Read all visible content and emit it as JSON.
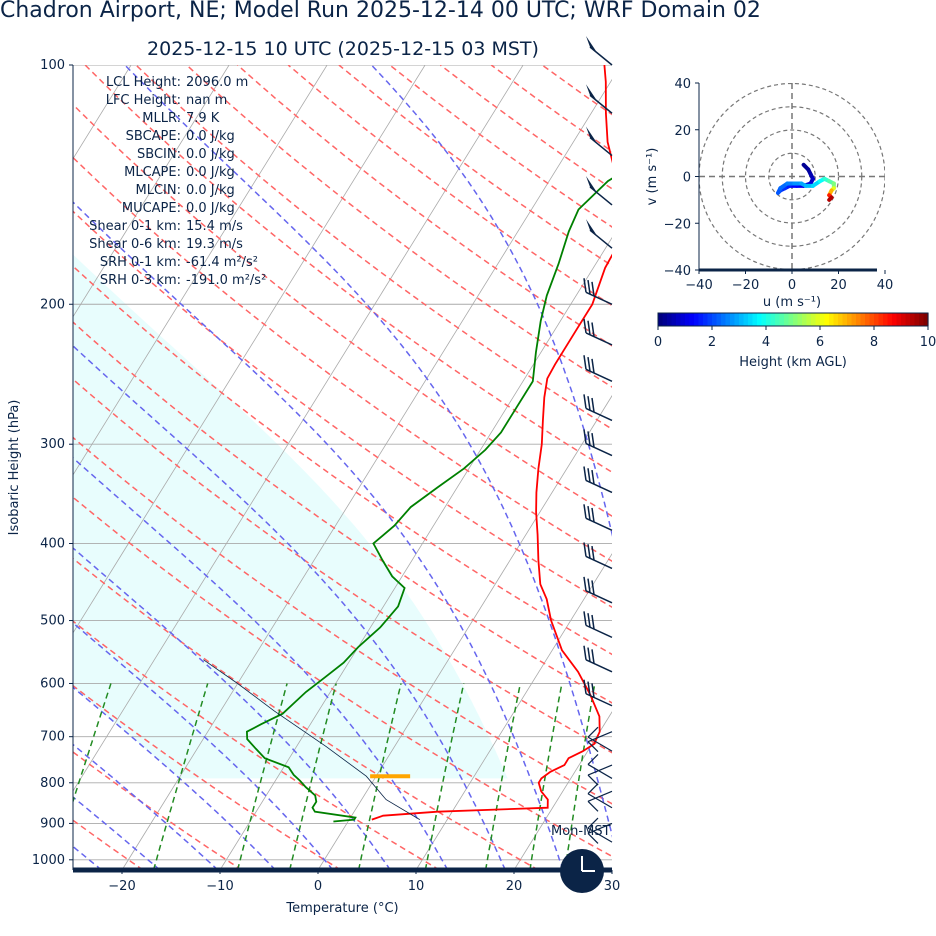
{
  "header": {
    "title": "Chadron Airport, NE; Model Run 2025-12-14 00 UTC; WRF Domain 02",
    "subtitle": "2025-12-15 10 UTC  (2025-12-15 03 MST)"
  },
  "stats": [
    {
      "label": "LCL Height:",
      "value": "2096.0 m"
    },
    {
      "label": "LFC Height:",
      "value": "nan m"
    },
    {
      "label": "MLLR:",
      "value": "7.9 K"
    },
    {
      "label": "SBCAPE:",
      "value": "0.0 J/kg"
    },
    {
      "label": "SBCIN:",
      "value": "0.0 J/kg"
    },
    {
      "label": "MLCAPE:",
      "value": "0.0 J/kg"
    },
    {
      "label": "MLCIN:",
      "value": "0.0 J/kg"
    },
    {
      "label": "MUCAPE:",
      "value": "0.0 J/kg"
    },
    {
      "label": "Shear 0-1 km:",
      "value": "15.4 m/s"
    },
    {
      "label": "Shear 0-6 km:",
      "value": "19.3 m/s"
    },
    {
      "label": "SRH 0-1 km:",
      "value": "-61.4 m²/s²"
    },
    {
      "label": "SRH 0-3 km:",
      "value": "-191.0 m²/s²"
    }
  ],
  "clock_label": "Mon-MST",
  "chart_data": [
    {
      "type": "line",
      "subtype": "skew-T log-P",
      "xlabel": "Temperature (°C)",
      "ylabel": "Isobaric Height (hPa)",
      "xlim": [
        -25,
        30
      ],
      "ylim": [
        1030,
        100
      ],
      "y_scale": "log",
      "xticks": [
        -20,
        -10,
        0,
        10,
        20,
        30
      ],
      "yticks": [
        100,
        200,
        300,
        400,
        500,
        600,
        700,
        800,
        900,
        1000
      ],
      "grid": true,
      "colors": {
        "temperature": "#ff0000",
        "dewpoint": "#008000",
        "dry_adiabats": "#ff6666",
        "moist_adiabats": "#6666ee",
        "mixing_ratio": "#228b22",
        "parcel": "#0b2447",
        "cloud_shade": "#e8fdfd",
        "lcl_marker": "#ffa500"
      },
      "series": [
        {
          "name": "Temperature",
          "points": [
            [
              2.3,
              890
            ],
            [
              3.2,
              880
            ],
            [
              8.5,
              870
            ],
            [
              19.5,
              860
            ],
            [
              19.0,
              840
            ],
            [
              17.8,
              820
            ],
            [
              17.0,
              800
            ],
            [
              17.0,
              790
            ],
            [
              17.5,
              775
            ],
            [
              18.5,
              760
            ],
            [
              18.5,
              745
            ],
            [
              19.5,
              730
            ],
            [
              20.2,
              715
            ],
            [
              20.0,
              690
            ],
            [
              19.0,
              660
            ],
            [
              16.7,
              620
            ],
            [
              14.0,
              580
            ],
            [
              11.0,
              545
            ],
            [
              8.0,
              500
            ],
            [
              6.2,
              470
            ],
            [
              4.6,
              450
            ],
            [
              2.9,
              420
            ],
            [
              1.2,
              390
            ],
            [
              -0.4,
              365
            ],
            [
              -1.6,
              345
            ],
            [
              -2.9,
              322
            ],
            [
              -4.1,
              300
            ],
            [
              -5.5,
              280
            ],
            [
              -6.8,
              262
            ],
            [
              -7.7,
              248
            ],
            [
              -7.8,
              238
            ],
            [
              -7.8,
              215
            ],
            [
              -7.8,
              200
            ],
            [
              -8.8,
              180
            ],
            [
              -9.0,
              165
            ],
            [
              -11.2,
              150
            ],
            [
              -13.7,
              137
            ],
            [
              -16.5,
              125
            ],
            [
              -18.5,
              115
            ],
            [
              -20.5,
              105
            ],
            [
              -21.7,
              100
            ]
          ]
        },
        {
          "name": "Dewpoint",
          "points": [
            [
              -1.5,
              895
            ],
            [
              0.5,
              890
            ],
            [
              0.5,
              885
            ],
            [
              -4.0,
              870
            ],
            [
              -4.5,
              860
            ],
            [
              -4.5,
              845
            ],
            [
              -5.0,
              830
            ],
            [
              -6.5,
              810
            ],
            [
              -7.5,
              795
            ],
            [
              -8.5,
              782
            ],
            [
              -9.5,
              765
            ],
            [
              -12.5,
              745
            ],
            [
              -14.0,
              725
            ],
            [
              -15.5,
              705
            ],
            [
              -16.0,
              690
            ],
            [
              -15.0,
              675
            ],
            [
              -13.5,
              655
            ],
            [
              -13.0,
              635
            ],
            [
              -12.5,
              615
            ],
            [
              -11.5,
              590
            ],
            [
              -10.5,
              565
            ],
            [
              -10.0,
              540
            ],
            [
              -9.0,
              510
            ],
            [
              -8.5,
              480
            ],
            [
              -9.0,
              455
            ],
            [
              -11.0,
              440
            ],
            [
              -13.0,
              420
            ],
            [
              -15.0,
              400
            ],
            [
              -14.0,
              380
            ],
            [
              -13.5,
              360
            ],
            [
              -12.0,
              340
            ],
            [
              -10.5,
              322
            ],
            [
              -9.5,
              305
            ],
            [
              -9.0,
              290
            ],
            [
              -9.0,
              270
            ],
            [
              -9.0,
              250
            ],
            [
              -10.5,
              230
            ],
            [
              -12.0,
              210
            ],
            [
              -13.0,
              195
            ],
            [
              -13.8,
              178
            ],
            [
              -14.8,
              162
            ],
            [
              -15.2,
              152
            ],
            [
              -14.0,
              140
            ],
            [
              -11.5,
              130
            ],
            [
              -9.5,
              120
            ],
            [
              -8.0,
              112
            ],
            [
              -6.0,
              105
            ],
            [
              -4.5,
              100
            ]
          ]
        },
        {
          "name": "Parcel",
          "points": [
            [
              7.2,
              890
            ],
            [
              2.5,
              840
            ],
            [
              -1.0,
              785
            ],
            [
              -7.0,
              720
            ],
            [
              -14.5,
              650
            ],
            [
              -20.0,
              600
            ],
            [
              -25.0,
              560
            ]
          ]
        }
      ],
      "lcl_pressure": 785,
      "wind_barb_levels": [
        100,
        115,
        130,
        150,
        170,
        200,
        225,
        250,
        280,
        310,
        345,
        385,
        430,
        475,
        525,
        580,
        640,
        690,
        730,
        760,
        790,
        820,
        860,
        900,
        950
      ]
    },
    {
      "type": "line",
      "subtype": "hodograph",
      "xlabel": "u (m s⁻¹)",
      "ylabel": "v (m s⁻¹)",
      "xlim": [
        -40,
        40
      ],
      "ylim": [
        -40,
        40
      ],
      "xticks": [
        -40,
        -20,
        0,
        20,
        40
      ],
      "yticks": [
        -40,
        -20,
        0,
        20,
        40
      ],
      "rings": [
        10,
        20,
        30,
        40
      ],
      "points": [
        [
          5,
          5
        ],
        [
          7,
          3
        ],
        [
          8,
          1
        ],
        [
          9,
          -1
        ],
        [
          8,
          -3
        ],
        [
          5,
          -4
        ],
        [
          2,
          -4
        ],
        [
          -1,
          -4
        ],
        [
          -3,
          -5
        ],
        [
          -5,
          -6
        ],
        [
          -6,
          -7
        ],
        [
          -5,
          -5
        ],
        [
          -2,
          -3
        ],
        [
          1,
          -3
        ],
        [
          4,
          -3
        ],
        [
          6,
          -4
        ],
        [
          9,
          -4
        ],
        [
          12,
          -2
        ],
        [
          14,
          -1
        ],
        [
          16,
          -2
        ],
        [
          18,
          -3
        ],
        [
          18,
          -5
        ],
        [
          17,
          -6
        ],
        [
          16,
          -8
        ],
        [
          17,
          -9
        ],
        [
          16,
          -10
        ]
      ],
      "heights_km": [
        0.1,
        0.2,
        0.3,
        0.5,
        0.7,
        0.9,
        1.1,
        1.3,
        1.5,
        1.7,
        1.9,
        2.1,
        2.3,
        2.5,
        2.7,
        2.9,
        3.1,
        3.4,
        3.8,
        4.2,
        4.6,
        5.0,
        6.0,
        7.0,
        8.5,
        9.5
      ],
      "colorbar": {
        "label": "Height (km AGL)",
        "min": 0,
        "max": 10,
        "ticks": [
          0,
          2,
          4,
          6,
          8,
          10
        ],
        "colormap": "jet"
      }
    }
  ]
}
